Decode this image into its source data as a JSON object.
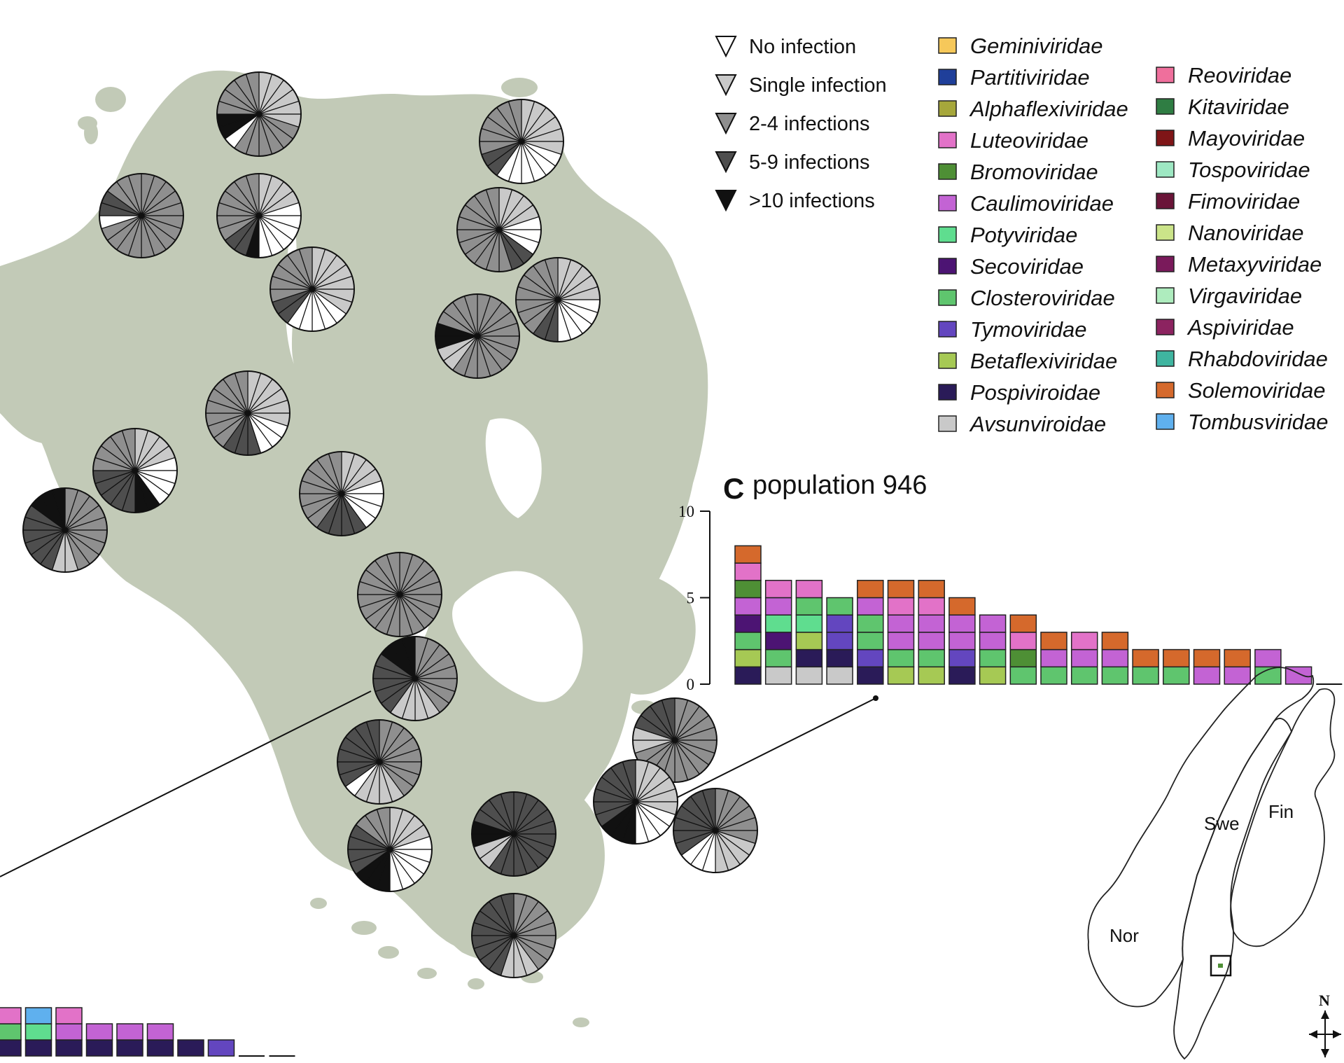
{
  "colors": {
    "land": "#c2cab7",
    "none": "#ffffff",
    "single": "#c9c9c9",
    "two_four": "#8f8f8f",
    "five_nine": "#4e4e4e",
    "ten_plus": "#111111"
  },
  "infection_legend": [
    {
      "label": "No infection",
      "level": "none"
    },
    {
      "label": "Single infection",
      "level": "single"
    },
    {
      "label": "2-4 infections",
      "level": "two_four"
    },
    {
      "label": "5-9 infections",
      "level": "five_nine"
    },
    {
      "label": ">10 infections",
      "level": "ten_plus"
    }
  ],
  "families": {
    "Geminiviridae": "#f6c85a",
    "Partitiviridae": "#1f3f9a",
    "Alphaflexiviridae": "#a6a73b",
    "Luteoviridae": "#e272c8",
    "Bromoviridae": "#4e8f35",
    "Caulimoviridae": "#c363d4",
    "Potyviridae": "#5fdd8f",
    "Secoviridae": "#4c1473",
    "Closteroviridae": "#5fc56e",
    "Tymoviridae": "#6346bf",
    "Betaflexiviridae": "#a6c954",
    "Pospiviroidae": "#2a1b58",
    "Avsunviroidae": "#c9c9c9",
    "Reoviridae": "#ef6f9c",
    "Kitaviridae": "#2f7d43",
    "Mayoviridae": "#7f1517",
    "Tospoviridae": "#9ee8c3",
    "Fimoviridae": "#6a1438",
    "Nanoviridae": "#cbe489",
    "Metaxyviridae": "#7a1a5b",
    "Virgaviridae": "#aeecbe",
    "Aspiviridae": "#8c2360",
    "Rhabdoviridae": "#3fb5a0",
    "Solemoviridae": "#d5692c",
    "Tombusviridae": "#5fb0ee"
  },
  "family_legend_left": [
    "Geminiviridae",
    "Partitiviridae",
    "Alphaflexiviridae",
    "Luteoviridae",
    "Bromoviridae",
    "Caulimoviridae",
    "Potyviridae",
    "Secoviridae",
    "Closteroviridae",
    "Tymoviridae",
    "Betaflexiviridae",
    "Pospiviroidae",
    "Avsunviroidae"
  ],
  "family_legend_right": [
    "Reoviridae",
    "Kitaviridae",
    "Mayoviridae",
    "Tospoviridae",
    "Fimoviridae",
    "Nanoviridae",
    "Metaxyviridae",
    "Virgaviridae",
    "Aspiviridae",
    "Rhabdoviridae",
    "Solemoviridae",
    "Tombusviridae"
  ],
  "pies": [
    {
      "slices": [
        [
          "single",
          6
        ],
        [
          "two_four",
          6
        ],
        [
          "none",
          1
        ],
        [
          "ten_plus",
          2
        ],
        [
          "two_four",
          5
        ]
      ]
    },
    {
      "slices": [
        [
          "single",
          6
        ],
        [
          "none",
          6
        ],
        [
          "five_nine",
          2
        ],
        [
          "two_four",
          6
        ]
      ]
    },
    {
      "slices": [
        [
          "two_four",
          14
        ],
        [
          "none",
          1
        ],
        [
          "five_nine",
          2
        ],
        [
          "two_four",
          3
        ]
      ]
    },
    {
      "slices": [
        [
          "single",
          4
        ],
        [
          "none",
          6
        ],
        [
          "ten_plus",
          1
        ],
        [
          "five_nine",
          2
        ],
        [
          "two_four",
          7
        ]
      ]
    },
    {
      "slices": [
        [
          "single",
          4
        ],
        [
          "none",
          3
        ],
        [
          "five_nine",
          2
        ],
        [
          "two_four",
          11
        ]
      ]
    },
    {
      "slices": [
        [
          "single",
          7
        ],
        [
          "none",
          5
        ],
        [
          "five_nine",
          2
        ],
        [
          "two_four",
          6
        ]
      ]
    },
    {
      "slices": [
        [
          "single",
          5
        ],
        [
          "none",
          5
        ],
        [
          "five_nine",
          2
        ],
        [
          "two_four",
          8
        ]
      ]
    },
    {
      "slices": [
        [
          "two_four",
          12
        ],
        [
          "single",
          2
        ],
        [
          "ten_plus",
          2
        ],
        [
          "two_four",
          4
        ]
      ]
    },
    {
      "slices": [
        [
          "single",
          6
        ],
        [
          "none",
          3
        ],
        [
          "five_nine",
          3
        ],
        [
          "two_four",
          8
        ]
      ]
    },
    {
      "slices": [
        [
          "single",
          4
        ],
        [
          "none",
          4
        ],
        [
          "ten_plus",
          2
        ],
        [
          "five_nine",
          5
        ],
        [
          "two_four",
          5
        ]
      ]
    },
    {
      "slices": [
        [
          "single",
          4
        ],
        [
          "none",
          4
        ],
        [
          "five_nine",
          4
        ],
        [
          "two_four",
          8
        ]
      ]
    },
    {
      "slices": [
        [
          "two_four",
          9
        ],
        [
          "single",
          2
        ],
        [
          "five_nine",
          6
        ],
        [
          "ten_plus",
          3
        ]
      ]
    },
    {
      "slices": [
        [
          "two_four",
          20
        ]
      ]
    },
    {
      "slices": [
        [
          "two_four",
          8
        ],
        [
          "single",
          4
        ],
        [
          "five_nine",
          5
        ],
        [
          "ten_plus",
          3
        ]
      ]
    },
    {
      "slices": [
        [
          "two_four",
          8
        ],
        [
          "single",
          4
        ],
        [
          "none",
          1
        ],
        [
          "five_nine",
          7
        ]
      ]
    },
    {
      "slices": [
        [
          "two_four",
          14
        ],
        [
          "single",
          2
        ],
        [
          "five_nine",
          4
        ]
      ]
    },
    {
      "slices": [
        [
          "single",
          4
        ],
        [
          "none",
          6
        ],
        [
          "ten_plus",
          3
        ],
        [
          "five_nine",
          4
        ],
        [
          "two_four",
          3
        ]
      ]
    },
    {
      "slices": [
        [
          "five_nine",
          12
        ],
        [
          "single",
          2
        ],
        [
          "ten_plus",
          2
        ],
        [
          "five_nine",
          4
        ]
      ]
    },
    {
      "slices": [
        [
          "single",
          6
        ],
        [
          "none",
          4
        ],
        [
          "ten_plus",
          3
        ],
        [
          "five_nine",
          7
        ]
      ]
    },
    {
      "slices": [
        [
          "two_four",
          8
        ],
        [
          "single",
          3
        ],
        [
          "five_nine",
          9
        ]
      ]
    },
    {
      "slices": [
        [
          "two_four",
          6
        ],
        [
          "single",
          4
        ],
        [
          "none",
          3
        ],
        [
          "five_nine",
          7
        ]
      ]
    }
  ],
  "panel_c": {
    "letter": "C",
    "title": "population 946",
    "chart_data": {
      "type": "bar",
      "stacked": true,
      "yticks": [
        0,
        5,
        10
      ],
      "ylim": [
        0,
        10
      ],
      "stacks": [
        [
          "Pospiviroidae",
          "Betaflexiviridae",
          "Closteroviridae",
          "Secoviridae",
          "Caulimoviridae",
          "Bromoviridae",
          "Luteoviridae",
          "Solemoviridae"
        ],
        [
          "Avsunviroidae",
          "Closteroviridae",
          "Secoviridae",
          "Potyviridae",
          "Caulimoviridae",
          "Luteoviridae"
        ],
        [
          "Avsunviroidae",
          "Pospiviroidae",
          "Betaflexiviridae",
          "Potyviridae",
          "Closteroviridae",
          "Luteoviridae"
        ],
        [
          "Avsunviroidae",
          "Pospiviroidae",
          "Tymoviridae",
          "Tymoviridae",
          "Closteroviridae"
        ],
        [
          "Pospiviroidae",
          "Tymoviridae",
          "Closteroviridae",
          "Closteroviridae",
          "Caulimoviridae",
          "Solemoviridae"
        ],
        [
          "Betaflexiviridae",
          "Closteroviridae",
          "Caulimoviridae",
          "Caulimoviridae",
          "Luteoviridae",
          "Solemoviridae"
        ],
        [
          "Betaflexiviridae",
          "Closteroviridae",
          "Caulimoviridae",
          "Caulimoviridae",
          "Luteoviridae",
          "Solemoviridae"
        ],
        [
          "Pospiviroidae",
          "Tymoviridae",
          "Caulimoviridae",
          "Caulimoviridae",
          "Solemoviridae"
        ],
        [
          "Betaflexiviridae",
          "Closteroviridae",
          "Caulimoviridae",
          "Caulimoviridae"
        ],
        [
          "Closteroviridae",
          "Bromoviridae",
          "Luteoviridae",
          "Solemoviridae"
        ],
        [
          "Closteroviridae",
          "Caulimoviridae",
          "Solemoviridae"
        ],
        [
          "Closteroviridae",
          "Caulimoviridae",
          "Luteoviridae"
        ],
        [
          "Closteroviridae",
          "Caulimoviridae",
          "Solemoviridae"
        ],
        [
          "Closteroviridae",
          "Solemoviridae"
        ],
        [
          "Closteroviridae",
          "Solemoviridae"
        ],
        [
          "Caulimoviridae",
          "Solemoviridae"
        ],
        [
          "Caulimoviridae",
          "Solemoviridae"
        ],
        [
          "Closteroviridae",
          "Caulimoviridae"
        ],
        [
          "Caulimoviridae"
        ],
        []
      ]
    }
  },
  "partial_chart": {
    "chart_data": {
      "type": "bar",
      "stacked": true,
      "stacks": [
        [
          "Pospiviroidae",
          "Closteroviridae",
          "Luteoviridae"
        ],
        [
          "Pospiviroidae",
          "Potyviridae",
          "Tombusviridae"
        ],
        [
          "Pospiviroidae",
          "Caulimoviridae",
          "Luteoviridae"
        ],
        [
          "Pospiviroidae",
          "Caulimoviridae"
        ],
        [
          "Pospiviroidae",
          "Caulimoviridae"
        ],
        [
          "Pospiviroidae",
          "Caulimoviridae"
        ],
        [
          "Pospiviroidae"
        ],
        [
          "Tymoviridae"
        ],
        [],
        []
      ]
    }
  },
  "inset": {
    "countries": [
      {
        "label": "Swe"
      },
      {
        "label": "Fin"
      },
      {
        "label": "Nor"
      }
    ],
    "north": "N"
  }
}
